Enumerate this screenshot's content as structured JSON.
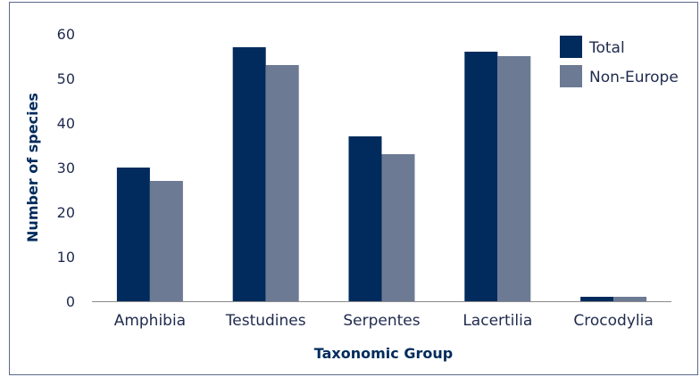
{
  "chart_data": {
    "type": "bar",
    "categories": [
      "Amphibia",
      "Testudines",
      "Serpentes",
      "Lacertilia",
      "Crocodylia"
    ],
    "series": [
      {
        "name": "Total",
        "values": [
          30,
          57,
          37,
          56,
          1
        ],
        "color": "#002b5c"
      },
      {
        "name": "Non-Europe",
        "values": [
          27,
          53,
          33,
          55,
          1
        ],
        "color": "#6c7a94"
      }
    ],
    "xlabel": "Taxonomic Group",
    "ylabel": "Number of species",
    "ylim": [
      0,
      60
    ],
    "yticks": [
      0,
      10,
      20,
      30,
      40,
      50,
      60
    ],
    "grid": false,
    "legend_position": "top-right"
  }
}
